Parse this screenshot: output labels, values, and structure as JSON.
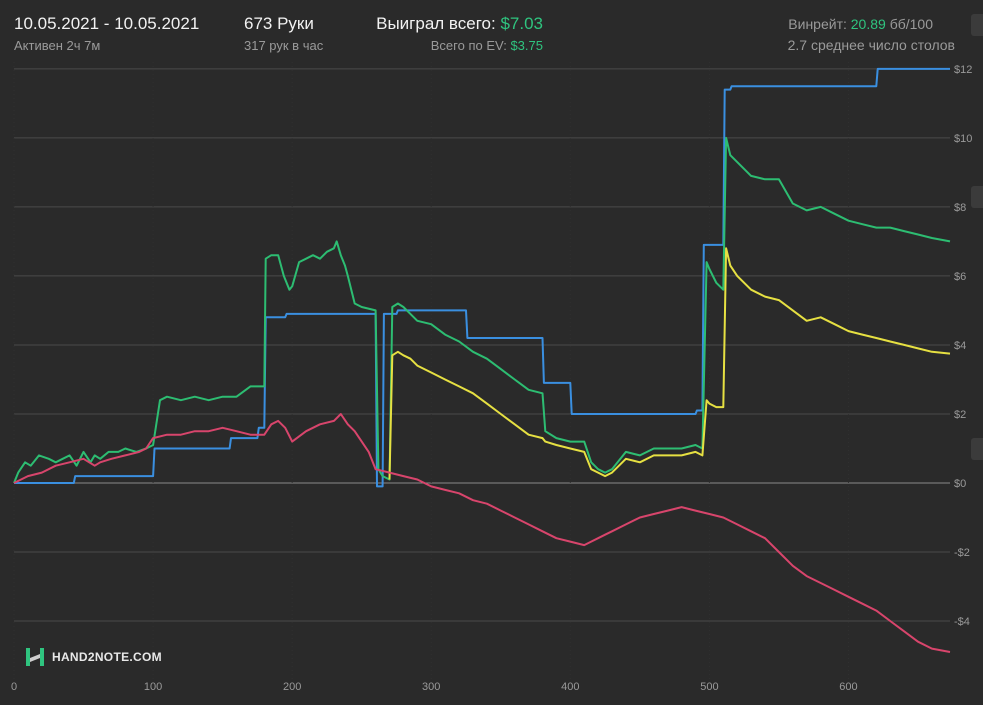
{
  "header": {
    "date_range": "10.05.2021 - 10.05.2021",
    "active": "Активен 2ч 7м",
    "hands": "673 Руки",
    "hands_per_hour": "317 рук в час",
    "won_label": "Выиграл всего:",
    "won_value": "$7.03",
    "ev_label": "Всего по EV:",
    "ev_value": "$3.75",
    "winrate_label": "Винрейт:",
    "winrate_value": "20.89",
    "winrate_unit": "бб/100",
    "tables": "2.7 среднее число столов"
  },
  "watermark": "HAND2NOTE.COM",
  "colors": {
    "background": "#2a2a2a",
    "grid": "#4a4a4a",
    "zero": "#8a8a8a",
    "accent_green": "#2fc47f"
  },
  "chart_data": {
    "type": "line",
    "xlim": [
      0,
      673
    ],
    "ylim": [
      -6.0,
      12.2
    ],
    "xticks": [
      0,
      100,
      200,
      300,
      400,
      500,
      600
    ],
    "yticks": [
      12,
      10,
      8,
      6,
      4,
      2,
      0,
      -2,
      -4
    ],
    "ytick_labels": [
      "$12",
      "$10",
      "$8",
      "$6",
      "$4",
      "$2",
      "$0",
      "-$2",
      "-$4"
    ],
    "grid": true,
    "series": [
      {
        "color": "#3a8fe0",
        "x": [
          0,
          43,
          44,
          100,
          101,
          155,
          156,
          175,
          176,
          180,
          181,
          195,
          196,
          260,
          261,
          265,
          266,
          275,
          276,
          290,
          291,
          325,
          326,
          380,
          381,
          400,
          401,
          415,
          416,
          490,
          491,
          495,
          496,
          510,
          511,
          515,
          516,
          560,
          561,
          620,
          621,
          673
        ],
        "y": [
          0,
          0,
          0.2,
          0.2,
          1.0,
          1.0,
          1.3,
          1.3,
          1.6,
          1.6,
          4.8,
          4.8,
          4.9,
          4.9,
          -0.1,
          -0.1,
          4.9,
          4.9,
          5.0,
          5.0,
          5.0,
          5.0,
          4.2,
          4.2,
          2.9,
          2.9,
          2.0,
          2.0,
          2.0,
          2.0,
          2.1,
          2.1,
          6.9,
          6.9,
          11.4,
          11.4,
          11.5,
          11.5,
          11.5,
          11.5,
          12.0,
          12.0
        ]
      },
      {
        "color": "#2dbd72",
        "x": [
          0,
          3,
          8,
          12,
          18,
          25,
          30,
          35,
          40,
          45,
          50,
          55,
          58,
          62,
          68,
          75,
          80,
          88,
          95,
          100,
          105,
          110,
          120,
          130,
          140,
          150,
          160,
          170,
          175,
          180,
          181,
          185,
          190,
          194,
          198,
          200,
          205,
          210,
          215,
          220,
          225,
          230,
          232,
          235,
          238,
          240,
          245,
          250,
          260,
          262,
          265,
          270,
          272,
          276,
          280,
          285,
          290,
          300,
          310,
          320,
          330,
          340,
          350,
          360,
          370,
          380,
          382,
          390,
          400,
          410,
          415,
          420,
          425,
          430,
          440,
          450,
          460,
          470,
          480,
          490,
          495,
          498,
          500,
          505,
          510,
          512,
          515,
          520,
          530,
          540,
          550,
          560,
          570,
          580,
          590,
          600,
          610,
          620,
          630,
          640,
          650,
          660,
          673
        ],
        "y": [
          0,
          0.3,
          0.6,
          0.5,
          0.8,
          0.7,
          0.6,
          0.7,
          0.8,
          0.5,
          0.9,
          0.6,
          0.8,
          0.7,
          0.9,
          0.9,
          1.0,
          0.9,
          1.0,
          1.1,
          2.4,
          2.5,
          2.4,
          2.5,
          2.4,
          2.5,
          2.5,
          2.8,
          2.8,
          2.8,
          6.5,
          6.6,
          6.6,
          6.0,
          5.6,
          5.7,
          6.4,
          6.5,
          6.6,
          6.5,
          6.7,
          6.8,
          7.0,
          6.6,
          6.3,
          6.0,
          5.2,
          5.1,
          5.0,
          0.4,
          0.2,
          0.1,
          5.1,
          5.2,
          5.1,
          4.9,
          4.7,
          4.6,
          4.3,
          4.1,
          3.8,
          3.6,
          3.3,
          3.0,
          2.7,
          2.6,
          1.5,
          1.3,
          1.2,
          1.2,
          0.6,
          0.4,
          0.3,
          0.4,
          0.9,
          0.8,
          1.0,
          1.0,
          1.0,
          1.1,
          1.0,
          6.4,
          6.2,
          5.8,
          5.6,
          10.0,
          9.5,
          9.3,
          8.9,
          8.8,
          8.8,
          8.1,
          7.9,
          8.0,
          7.8,
          7.6,
          7.5,
          7.4,
          7.4,
          7.3,
          7.2,
          7.1,
          7.0
        ]
      },
      {
        "color": "#e6e042",
        "x": [
          270,
          272,
          276,
          280,
          285,
          290,
          300,
          310,
          320,
          330,
          340,
          350,
          360,
          370,
          380,
          382,
          390,
          400,
          410,
          415,
          420,
          425,
          430,
          440,
          450,
          460,
          470,
          480,
          490,
          495,
          498,
          500,
          505,
          510,
          512,
          515,
          520,
          530,
          540,
          550,
          560,
          570,
          580,
          590,
          600,
          610,
          620,
          630,
          640,
          650,
          660,
          673
        ],
        "y": [
          0.1,
          3.7,
          3.8,
          3.7,
          3.6,
          3.4,
          3.2,
          3.0,
          2.8,
          2.6,
          2.3,
          2.0,
          1.7,
          1.4,
          1.3,
          1.2,
          1.1,
          1.0,
          0.9,
          0.4,
          0.3,
          0.2,
          0.3,
          0.7,
          0.6,
          0.8,
          0.8,
          0.8,
          0.9,
          0.8,
          2.4,
          2.3,
          2.2,
          2.2,
          6.8,
          6.3,
          6.0,
          5.6,
          5.4,
          5.3,
          5.0,
          4.7,
          4.8,
          4.6,
          4.4,
          4.3,
          4.2,
          4.1,
          4.0,
          3.9,
          3.8,
          3.75
        ]
      },
      {
        "color": "#d8456c",
        "x": [
          0,
          10,
          20,
          30,
          40,
          50,
          58,
          62,
          70,
          80,
          90,
          95,
          100,
          110,
          120,
          130,
          140,
          150,
          160,
          170,
          175,
          180,
          185,
          190,
          195,
          200,
          210,
          220,
          230,
          235,
          240,
          245,
          250,
          255,
          260,
          270,
          280,
          290,
          300,
          310,
          320,
          330,
          340,
          350,
          360,
          370,
          380,
          390,
          400,
          410,
          415,
          420,
          425,
          430,
          440,
          450,
          460,
          470,
          480,
          490,
          500,
          510,
          520,
          530,
          540,
          550,
          560,
          570,
          580,
          590,
          600,
          610,
          620,
          630,
          640,
          650,
          660,
          673
        ],
        "y": [
          0,
          0.2,
          0.3,
          0.5,
          0.6,
          0.7,
          0.5,
          0.6,
          0.7,
          0.8,
          0.9,
          1.0,
          1.3,
          1.4,
          1.4,
          1.5,
          1.5,
          1.6,
          1.5,
          1.4,
          1.4,
          1.4,
          1.7,
          1.8,
          1.6,
          1.2,
          1.5,
          1.7,
          1.8,
          2.0,
          1.7,
          1.5,
          1.2,
          0.9,
          0.4,
          0.3,
          0.2,
          0.1,
          -0.1,
          -0.2,
          -0.3,
          -0.5,
          -0.6,
          -0.8,
          -1.0,
          -1.2,
          -1.4,
          -1.6,
          -1.7,
          -1.8,
          -1.7,
          -1.6,
          -1.5,
          -1.4,
          -1.2,
          -1.0,
          -0.9,
          -0.8,
          -0.7,
          -0.8,
          -0.9,
          -1.0,
          -1.2,
          -1.4,
          -1.6,
          -2.0,
          -2.4,
          -2.7,
          -2.9,
          -3.1,
          -3.3,
          -3.5,
          -3.7,
          -4.0,
          -4.3,
          -4.6,
          -4.8,
          -4.9
        ]
      }
    ]
  }
}
